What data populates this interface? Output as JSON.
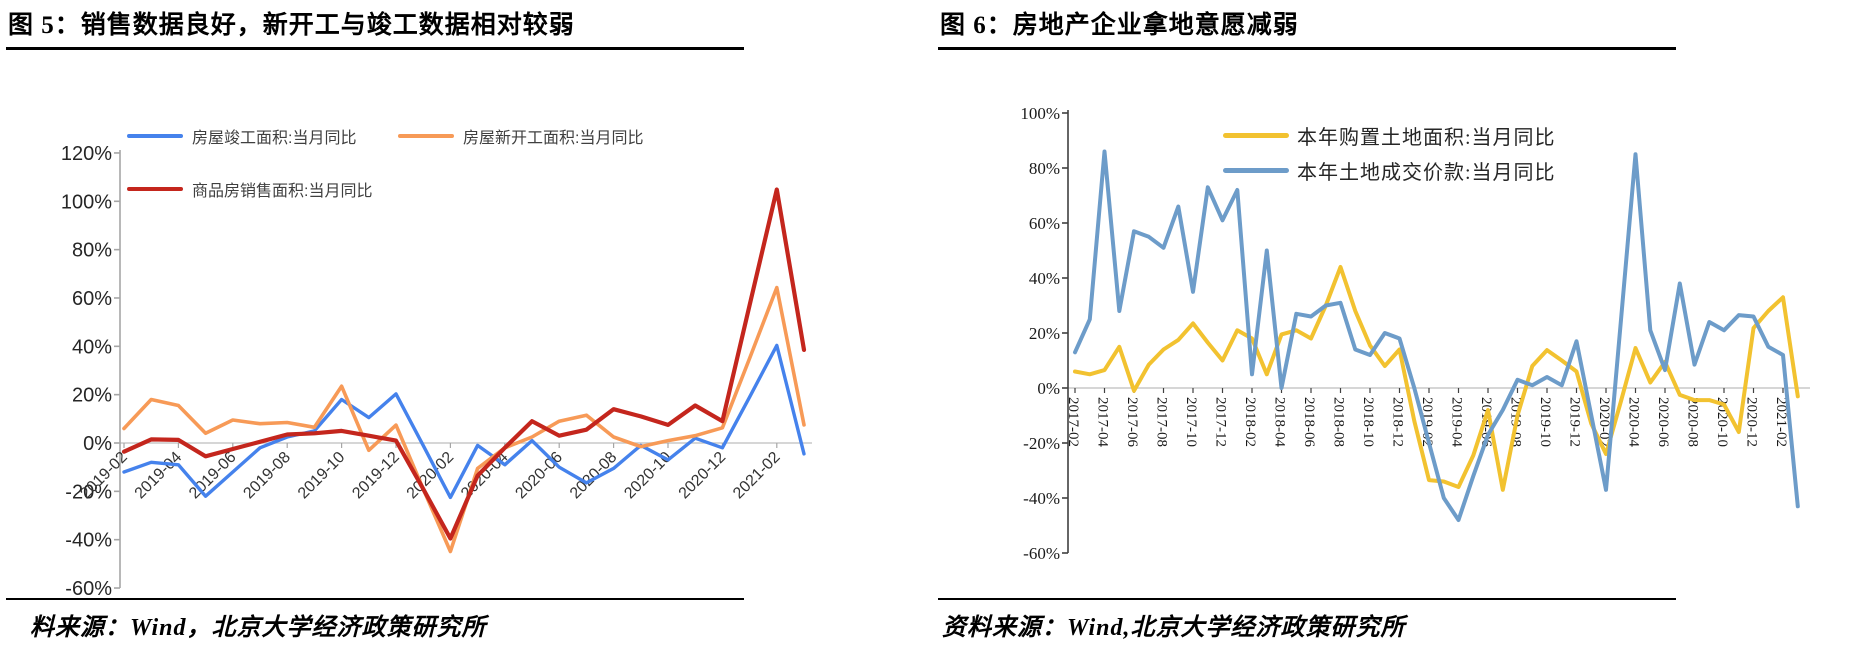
{
  "chart_data": [
    {
      "type": "line",
      "title": "图 5：销售数据良好，新开工与竣工数据相对较弱",
      "source": "料来源：Wind，北京大学经济政策研究所",
      "xlabel": "",
      "ylabel": "",
      "ylim": [
        -60,
        120
      ],
      "yticks": [
        120,
        100,
        80,
        60,
        40,
        20,
        0,
        -20,
        -40,
        -60
      ],
      "ytick_suffix": "%",
      "grid": "zero-line-only",
      "legend_position": "top-left",
      "x": [
        "2019-02",
        "2019-03",
        "2019-04",
        "2019-05",
        "2019-06",
        "2019-07",
        "2019-08",
        "2019-09",
        "2019-10",
        "2019-11",
        "2019-12",
        "2020-01",
        "2020-02",
        "2020-03",
        "2020-04",
        "2020-05",
        "2020-06",
        "2020-07",
        "2020-08",
        "2020-09",
        "2020-10",
        "2020-11",
        "2020-12",
        "2021-01",
        "2021-02",
        "2021-03"
      ],
      "tick_step": 2,
      "series": [
        {
          "name": "房屋竣工面积:当月同比",
          "color": "#4582ec",
          "values": [
            -12,
            -8,
            -9,
            -22,
            -12,
            -2,
            2.5,
            5,
            18,
            10.5,
            20.3,
            -1,
            -22.5,
            -1,
            -9,
            1,
            -10,
            -16.5,
            -10.5,
            -1,
            -7,
            2,
            -2,
            19,
            40.4,
            -4.5
          ]
        },
        {
          "name": "房屋新开工面积:当月同比",
          "color": "#f79a57",
          "values": [
            6,
            18,
            15.5,
            4,
            9.5,
            8,
            8.5,
            6.5,
            23.5,
            -3,
            7.4,
            -19,
            -44.9,
            -10.5,
            -2,
            2.5,
            9,
            11.5,
            2.5,
            -1.5,
            1,
            3,
            6.3,
            35,
            64.3,
            7.5
          ]
        },
        {
          "name": "商品房销售面积:当月同比",
          "color": "#c4261d",
          "values": [
            -3.6,
            1.5,
            1.3,
            -5.5,
            -2.5,
            0.5,
            3.5,
            4,
            5,
            3,
            1,
            -19,
            -39.5,
            -13.5,
            -2,
            9,
            3,
            5.5,
            14,
            11,
            7.5,
            15.5,
            9,
            57,
            104.9,
            38.5
          ]
        }
      ]
    },
    {
      "type": "line",
      "title": "图 6：房地产企业拿地意愿减弱",
      "source": "资料来源：Wind,北京大学经济政策研究所",
      "xlabel": "",
      "ylabel": "",
      "ylim": [
        -60,
        100
      ],
      "yticks": [
        100,
        80,
        60,
        40,
        20,
        0,
        -20,
        -40,
        -60
      ],
      "ytick_suffix": "%",
      "grid": "zero-line-only",
      "legend_position": "top-right",
      "x": [
        "2017-02",
        "2017-03",
        "2017-04",
        "2017-05",
        "2017-06",
        "2017-07",
        "2017-08",
        "2017-09",
        "2017-10",
        "2017-11",
        "2017-12",
        "2018-01",
        "2018-02",
        "2018-03",
        "2018-04",
        "2018-05",
        "2018-06",
        "2018-07",
        "2018-08",
        "2018-09",
        "2018-10",
        "2018-11",
        "2018-12",
        "2019-01",
        "2019-02",
        "2019-03",
        "2019-04",
        "2019-05",
        "2019-06",
        "2019-07",
        "2019-08",
        "2019-09",
        "2019-10",
        "2019-11",
        "2019-12",
        "2020-01",
        "2020-02",
        "2020-03",
        "2020-04",
        "2020-05",
        "2020-06",
        "2020-07",
        "2020-08",
        "2020-09",
        "2020-10",
        "2020-11",
        "2020-12",
        "2021-01",
        "2021-02",
        "2021-03"
      ],
      "tick_step": 2,
      "series": [
        {
          "name": "本年购置土地面积:当月同比",
          "color": "#f2c230",
          "values": [
            6,
            5,
            6.5,
            15,
            -1,
            8.5,
            14,
            17.5,
            23.5,
            16.5,
            10,
            21,
            18,
            5,
            19.5,
            21,
            18,
            30,
            44,
            28,
            15.5,
            8,
            14,
            -12,
            -33.5,
            -34,
            -36,
            -24.5,
            -8,
            -37,
            -10,
            8,
            13.8,
            10,
            6,
            -13,
            -24,
            -5,
            14.5,
            2,
            9.5,
            -2.5,
            -4.4,
            -4.4,
            -6,
            -16,
            21.8,
            28,
            33,
            -3
          ]
        },
        {
          "name": "本年土地成交价款:当月同比",
          "color": "#6d9cc9",
          "values": [
            13,
            25,
            86,
            28,
            57,
            55,
            51,
            66,
            35,
            73,
            61,
            72,
            5,
            50,
            0,
            27,
            26,
            30,
            31,
            14,
            12,
            20,
            18,
            0,
            -20,
            -40,
            -48,
            -32,
            -17,
            -8,
            3,
            1,
            4,
            1,
            17,
            -10,
            -37,
            24,
            85,
            21,
            6.5,
            38,
            8.5,
            24,
            21,
            26.5,
            26,
            15,
            12,
            -43
          ]
        }
      ]
    }
  ]
}
